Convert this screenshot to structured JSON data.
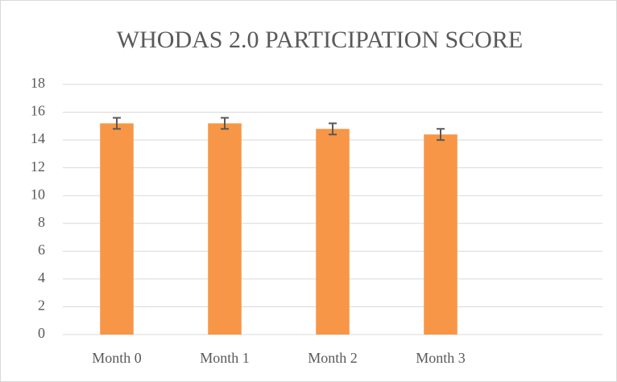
{
  "chart_data": {
    "type": "bar",
    "title": "WHODAS 2.0 PARTICIPATION SCORE",
    "categories": [
      "Month 0",
      "Month 1",
      "Month 2",
      "Month 3",
      null
    ],
    "values": [
      15.2,
      15.2,
      14.8,
      14.4,
      null
    ],
    "errors": [
      0.4,
      0.4,
      0.4,
      0.4,
      null
    ],
    "color": "#f79646",
    "ylim": [
      0,
      18
    ],
    "yticks": [
      0,
      2,
      4,
      6,
      8,
      10,
      12,
      14,
      16,
      18
    ],
    "grid": true
  }
}
